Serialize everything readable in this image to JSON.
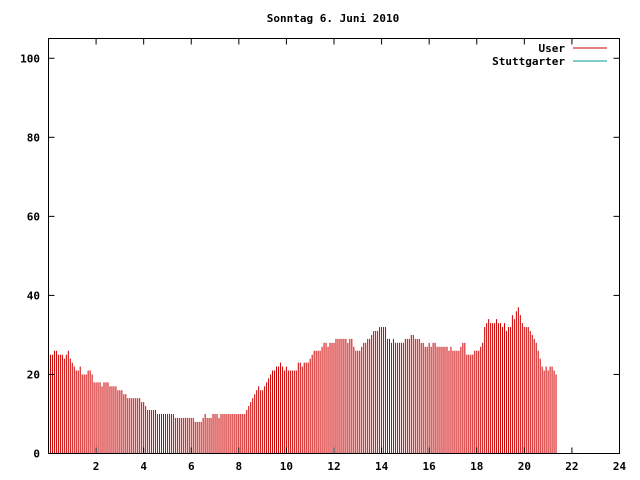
{
  "chart_data": {
    "type": "bar",
    "title": "Sonntag 6. Juni 2010",
    "xlabel": "",
    "ylabel": "",
    "xlim": [
      0,
      24
    ],
    "ylim": [
      0,
      105
    ],
    "x_ticks": [
      2,
      4,
      6,
      8,
      10,
      12,
      14,
      16,
      18,
      20,
      22,
      24
    ],
    "x_tick_labels": [
      "2",
      "4",
      "6",
      "8",
      "10",
      "12",
      "14",
      "16",
      "18",
      "20",
      "22",
      "24"
    ],
    "y_ticks": [
      0,
      20,
      40,
      60,
      80,
      100
    ],
    "y_tick_labels": [
      "0",
      "20",
      "40",
      "60",
      "80",
      "100"
    ],
    "grid": false,
    "legend_position": "top-right",
    "sample_interval_hours": 0.08333,
    "series": [
      {
        "name": "User",
        "color": "#cc0000",
        "values": [
          26,
          25,
          25,
          26,
          26,
          25,
          25,
          25,
          24,
          25,
          26,
          24,
          23,
          22,
          21,
          21,
          22,
          20,
          20,
          20,
          21,
          21,
          20,
          18,
          18,
          18,
          18,
          17,
          18,
          18,
          18,
          17,
          17,
          17,
          17,
          16,
          16,
          16,
          15,
          15,
          14,
          14,
          14,
          14,
          14,
          14,
          14,
          13,
          13,
          12,
          11,
          11,
          11,
          11,
          11,
          10,
          10,
          10,
          10,
          10,
          10,
          10,
          10,
          10,
          9,
          9,
          9,
          9,
          9,
          9,
          9,
          9,
          9,
          9,
          8,
          8,
          8,
          8,
          9,
          10,
          9,
          9,
          9,
          10,
          10,
          10,
          9,
          10,
          10,
          10,
          10,
          10,
          10,
          10,
          10,
          10,
          10,
          10,
          10,
          10,
          11,
          12,
          13,
          14,
          15,
          16,
          17,
          16,
          16,
          17,
          18,
          19,
          20,
          21,
          21,
          22,
          22,
          23,
          22,
          21,
          22,
          21,
          21,
          21,
          21,
          21,
          23,
          23,
          22,
          23,
          23,
          23,
          24,
          25,
          26,
          26,
          26,
          26,
          27,
          28,
          28,
          27,
          28,
          28,
          28,
          29,
          29,
          29,
          29,
          29,
          29,
          28,
          29,
          29,
          27,
          26,
          26,
          26,
          27,
          28,
          28,
          29,
          29,
          30,
          31,
          31,
          31,
          32,
          32,
          32,
          32,
          29,
          29,
          28,
          29,
          28,
          28,
          28,
          28,
          28,
          29,
          29,
          29,
          30,
          30,
          29,
          29,
          29,
          28,
          28,
          27,
          27,
          28,
          27,
          28,
          28,
          27,
          27,
          27,
          27,
          27,
          27,
          26,
          27,
          26,
          26,
          26,
          26,
          27,
          28,
          28,
          25,
          25,
          25,
          25,
          26,
          26,
          26,
          27,
          28,
          32,
          33,
          34,
          33,
          33,
          33,
          34,
          33,
          33,
          32,
          33,
          31,
          32,
          32,
          35,
          34,
          36,
          37,
          35,
          33,
          32,
          32,
          32,
          31,
          30,
          29,
          28,
          26,
          24,
          22,
          21,
          22,
          21,
          22,
          22,
          21,
          20
        ]
      },
      {
        "name": "Stuttgarter",
        "color": "#009999",
        "values": []
      }
    ]
  }
}
